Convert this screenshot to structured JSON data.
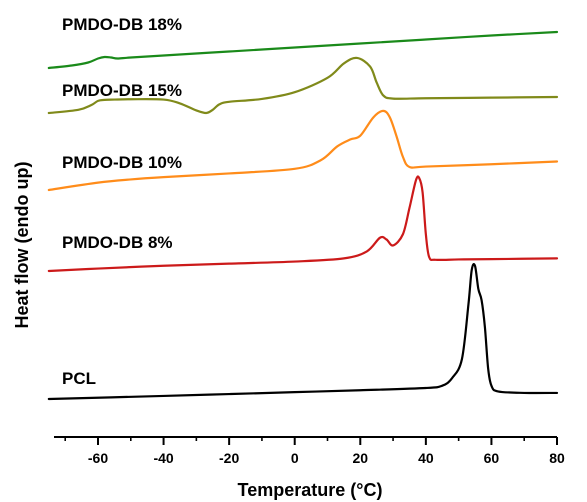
{
  "chart_data": {
    "type": "line",
    "title": "",
    "xlabel": "Temperature (°C)",
    "ylabel": "Heat flow (endo up)",
    "xlim": [
      -76,
      82
    ],
    "x_ticks": [
      -60,
      -40,
      -20,
      0,
      20,
      40,
      60,
      80
    ],
    "x_tick_labels": [
      "-60",
      "-40",
      "-20",
      "0",
      "20",
      "40",
      "60",
      "80"
    ],
    "y_ticks_shown": false,
    "grid": false,
    "legend": "none",
    "series": [
      {
        "name": "PMDO-DB 18%",
        "color": "#1a8a1a",
        "points": [
          [
            -75,
            0.0
          ],
          [
            -68,
            0.5
          ],
          [
            -63,
            1.1
          ],
          [
            -60,
            1.9
          ],
          [
            -58,
            2.2
          ],
          [
            -56,
            2.1
          ],
          [
            -54,
            1.9
          ],
          [
            -50,
            2.1
          ],
          [
            -40,
            2.5
          ],
          [
            -20,
            3.3
          ],
          [
            0,
            4.1
          ],
          [
            20,
            4.9
          ],
          [
            40,
            5.7
          ],
          [
            60,
            6.5
          ],
          [
            80,
            7.2
          ]
        ]
      },
      {
        "name": "PMDO-DB 15%",
        "color": "#808a1a",
        "points": [
          [
            -75,
            0.0
          ],
          [
            -66,
            1.0
          ],
          [
            -62,
            2.5
          ],
          [
            -60,
            3.8
          ],
          [
            -58,
            4.1
          ],
          [
            -55,
            4.2
          ],
          [
            -50,
            4.3
          ],
          [
            -40,
            4.2
          ],
          [
            -35,
            3.0
          ],
          [
            -30,
            0.8
          ],
          [
            -27,
            0.0
          ],
          [
            -25,
            1.0
          ],
          [
            -23,
            2.7
          ],
          [
            -20,
            3.5
          ],
          [
            -10,
            4.4
          ],
          [
            0,
            6.5
          ],
          [
            10,
            11.0
          ],
          [
            15,
            15.5
          ],
          [
            19,
            17.2
          ],
          [
            23,
            14.5
          ],
          [
            25,
            9.5
          ],
          [
            27,
            5.5
          ],
          [
            30,
            4.5
          ],
          [
            40,
            4.6
          ],
          [
            60,
            4.8
          ],
          [
            80,
            5.0
          ]
        ]
      },
      {
        "name": "PMDO-DB 10%",
        "color": "#ff8c1a",
        "points": [
          [
            -75,
            0.0
          ],
          [
            -60,
            1.6
          ],
          [
            -50,
            2.3
          ],
          [
            -40,
            2.8
          ],
          [
            -20,
            3.6
          ],
          [
            0,
            4.6
          ],
          [
            8,
            6.5
          ],
          [
            13,
            9.5
          ],
          [
            17,
            11.0
          ],
          [
            20,
            11.8
          ],
          [
            24,
            15.8
          ],
          [
            27,
            17.2
          ],
          [
            29,
            15.8
          ],
          [
            31,
            11.8
          ],
          [
            33,
            7.2
          ],
          [
            35,
            5.0
          ],
          [
            40,
            5.1
          ],
          [
            60,
            5.6
          ],
          [
            80,
            6.2
          ]
        ]
      },
      {
        "name": "PMDO-DB 8%",
        "color": "#cc1a1a",
        "points": [
          [
            -75,
            0.0
          ],
          [
            -60,
            0.7
          ],
          [
            -40,
            1.5
          ],
          [
            -20,
            2.1
          ],
          [
            0,
            2.7
          ],
          [
            15,
            3.6
          ],
          [
            22,
            5.6
          ],
          [
            26,
            9.5
          ],
          [
            28,
            9.0
          ],
          [
            30,
            7.3
          ],
          [
            33,
            10.5
          ],
          [
            35,
            18.0
          ],
          [
            37,
            26.0
          ],
          [
            38,
            26.5
          ],
          [
            39,
            22.5
          ],
          [
            40,
            10.5
          ],
          [
            41,
            4.0
          ],
          [
            43,
            3.2
          ],
          [
            50,
            3.3
          ],
          [
            60,
            3.4
          ],
          [
            80,
            3.6
          ]
        ]
      },
      {
        "name": "PCL",
        "color": "#000000",
        "points": [
          [
            -75,
            0.0
          ],
          [
            -40,
            0.8
          ],
          [
            -20,
            1.3
          ],
          [
            0,
            1.8
          ],
          [
            20,
            2.3
          ],
          [
            40,
            2.9
          ],
          [
            45,
            3.5
          ],
          [
            48,
            5.5
          ],
          [
            51,
            10.5
          ],
          [
            53,
            25.0
          ],
          [
            54,
            34.0
          ],
          [
            55,
            35.0
          ],
          [
            56,
            29.0
          ],
          [
            57,
            26.0
          ],
          [
            58,
            19.0
          ],
          [
            59,
            8.0
          ],
          [
            60,
            3.5
          ],
          [
            62,
            2.0
          ],
          [
            70,
            1.6
          ],
          [
            80,
            1.6
          ]
        ]
      }
    ]
  }
}
